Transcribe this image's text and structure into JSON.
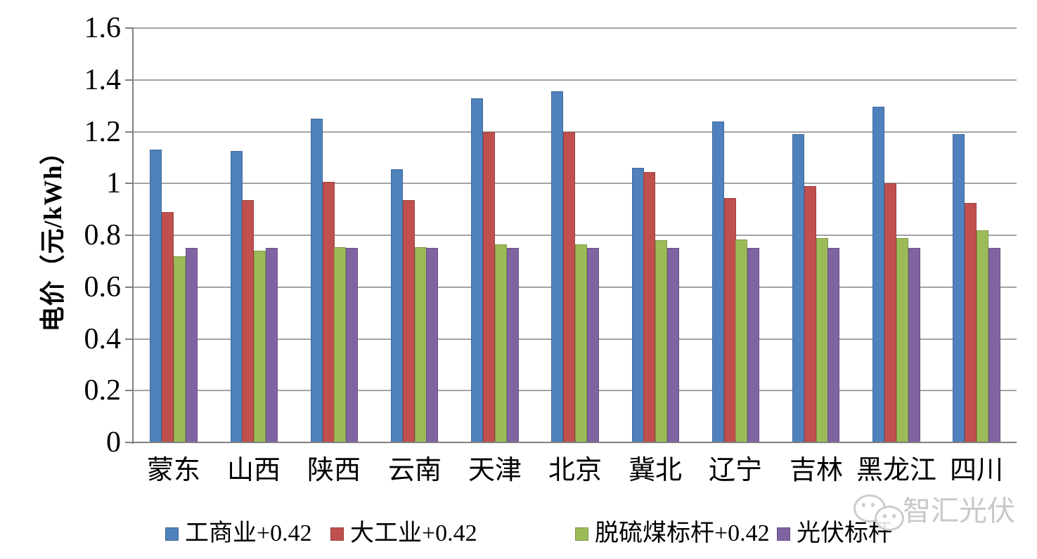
{
  "chart_data": {
    "type": "bar",
    "title": "",
    "xlabel": "",
    "ylabel": "电价（元/kWh）",
    "ylim": [
      0,
      1.6
    ],
    "ytick_interval": 0.2,
    "ytick_labels": [
      "0",
      "0.2",
      "0.4",
      "0.6",
      "0.8",
      "1",
      "1.2",
      "1.4",
      "1.6"
    ],
    "grid": true,
    "legend_position": "bottom",
    "categories": [
      "蒙东",
      "山西",
      "陕西",
      "云南",
      "天津",
      "北京",
      "冀北",
      "辽宁",
      "吉林",
      "黑龙江",
      "四川"
    ],
    "series": [
      {
        "name": "工商业+0.42",
        "color": "#4F81BD",
        "values": [
          1.13,
          1.125,
          1.25,
          1.055,
          1.33,
          1.355,
          1.06,
          1.24,
          1.19,
          1.295,
          1.19
        ]
      },
      {
        "name": "大工业+0.42",
        "color": "#C0504D",
        "values": [
          0.89,
          0.935,
          1.005,
          0.935,
          1.2,
          1.2,
          1.045,
          0.945,
          0.99,
          1.0,
          0.925
        ]
      },
      {
        "name": "脱硫煤标杆+0.42",
        "color": "#9BBB59",
        "values": [
          0.72,
          0.74,
          0.755,
          0.755,
          0.765,
          0.765,
          0.78,
          0.785,
          0.79,
          0.79,
          0.82
        ]
      },
      {
        "name": "光伏标杆",
        "color": "#8064A2",
        "values": [
          0.75,
          0.75,
          0.75,
          0.75,
          0.75,
          0.75,
          0.75,
          0.75,
          0.75,
          0.75,
          0.75
        ]
      }
    ]
  },
  "watermark": {
    "text": "智汇光伏",
    "logo": "wechat-chat-bubbles"
  },
  "colors": {
    "background": "#FFFFFF",
    "gridline": "#A3A3A3",
    "axis": "#808080",
    "text": "#000000",
    "watermark": "#C8C8C8"
  }
}
